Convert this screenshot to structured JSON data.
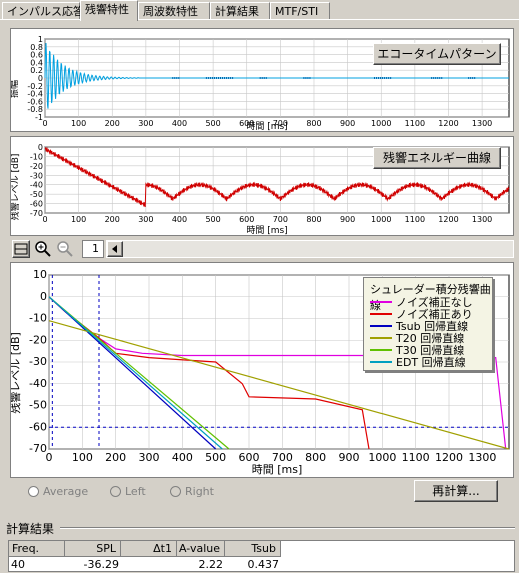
{
  "tabs": [
    {
      "label": "インパルス応答"
    },
    {
      "label": "残響特性"
    },
    {
      "label": "周波数特性"
    },
    {
      "label": "計算結果"
    },
    {
      "label": "MTF/STI"
    }
  ],
  "echo_plot": {
    "button_label": "エコータイムパターン",
    "ylabel": "振幅",
    "xlabel": "時間 [ms]",
    "yticks": [
      "1",
      "0.8",
      "0.6",
      "0.4",
      "0.2",
      "0",
      "-0.2",
      "-0.4",
      "-0.6",
      "-0.8",
      "-1"
    ],
    "xticks": [
      "0",
      "100",
      "200",
      "300",
      "400",
      "500",
      "600",
      "700",
      "800",
      "900",
      "1000",
      "1100",
      "1200",
      "1300"
    ]
  },
  "energy_plot": {
    "button_label": "残響エネルギー曲線",
    "ylabel": "残響レベル [dB]",
    "xlabel": "時間 [ms]",
    "yticks": [
      "0",
      "-10",
      "-20",
      "-30",
      "-40",
      "-50",
      "-60",
      "-70"
    ],
    "xticks": [
      "0",
      "100",
      "200",
      "300",
      "400",
      "500",
      "600",
      "700",
      "800",
      "900",
      "1000",
      "1100",
      "1200",
      "1300"
    ]
  },
  "toolbar": {
    "page_value": "1"
  },
  "decay_plot": {
    "ylabel": "残響レベル [dB]",
    "xlabel": "時間 [ms]",
    "yticks": [
      "10",
      "0",
      "-10",
      "-20",
      "-30",
      "-40",
      "-50",
      "-60",
      "-70"
    ],
    "xticks": [
      "0",
      "100",
      "200",
      "300",
      "400",
      "500",
      "600",
      "700",
      "800",
      "900",
      "1000",
      "1100",
      "1200",
      "1300"
    ],
    "legend_title": "シュレーダー積分残響曲線",
    "legend": [
      {
        "label": "ノイズ補正なし",
        "color": "#e000e0"
      },
      {
        "label": "ノイズ補正あり",
        "color": "#e00000"
      },
      {
        "label": "Tsub 回帰直線",
        "color": "#0000c0"
      },
      {
        "label": "T20 回帰直線",
        "color": "#a0a000"
      },
      {
        "label": "T30 回帰直線",
        "color": "#60c000"
      },
      {
        "label": "EDT 回帰直線",
        "color": "#00a0c0"
      }
    ]
  },
  "chart_data": [
    {
      "type": "line",
      "xlabel": "時間 [ms]",
      "ylabel": "残響レベル [dB]",
      "xlim": [
        0,
        1380
      ],
      "ylim": [
        -70,
        10
      ],
      "series": [
        {
          "name": "ノイズ補正なし",
          "x": [
            0,
            50,
            100,
            150,
            200,
            280,
            400,
            600,
            800,
            950,
            1000,
            1200,
            1340,
            1370
          ],
          "y": [
            0,
            -7,
            -13,
            -19,
            -24,
            -26,
            -27,
            -27,
            -27,
            -27,
            -27,
            -27.5,
            -28,
            -70
          ]
        },
        {
          "name": "ノイズ補正あり",
          "x": [
            0,
            50,
            100,
            150,
            200,
            300,
            500,
            580,
            600,
            800,
            940,
            960
          ],
          "y": [
            0,
            -7,
            -13,
            -19,
            -26,
            -28,
            -30,
            -40,
            -46,
            -47,
            -52,
            -70
          ]
        },
        {
          "name": "Tsub 回帰直線",
          "x": [
            0,
            500
          ],
          "y": [
            0,
            -70
          ]
        },
        {
          "name": "T20 回帰直線",
          "x": [
            0,
            1380
          ],
          "y": [
            -11,
            -70
          ]
        },
        {
          "name": "T30 回帰直線",
          "x": [
            0,
            540
          ],
          "y": [
            0,
            -70
          ]
        },
        {
          "name": "EDT 回帰直線",
          "x": [
            0,
            520
          ],
          "y": [
            0,
            -70
          ]
        }
      ]
    }
  ],
  "radios": [
    {
      "label": "Average"
    },
    {
      "label": "Left"
    },
    {
      "label": "Right"
    }
  ],
  "recalc_label": "再計算...",
  "results": {
    "title": "計算結果",
    "headers": [
      "Freq.",
      "SPL",
      "Δt1",
      "A-value",
      "Tsub"
    ],
    "row": [
      "40",
      "-36.29",
      "",
      "2.22",
      "0.437"
    ]
  }
}
